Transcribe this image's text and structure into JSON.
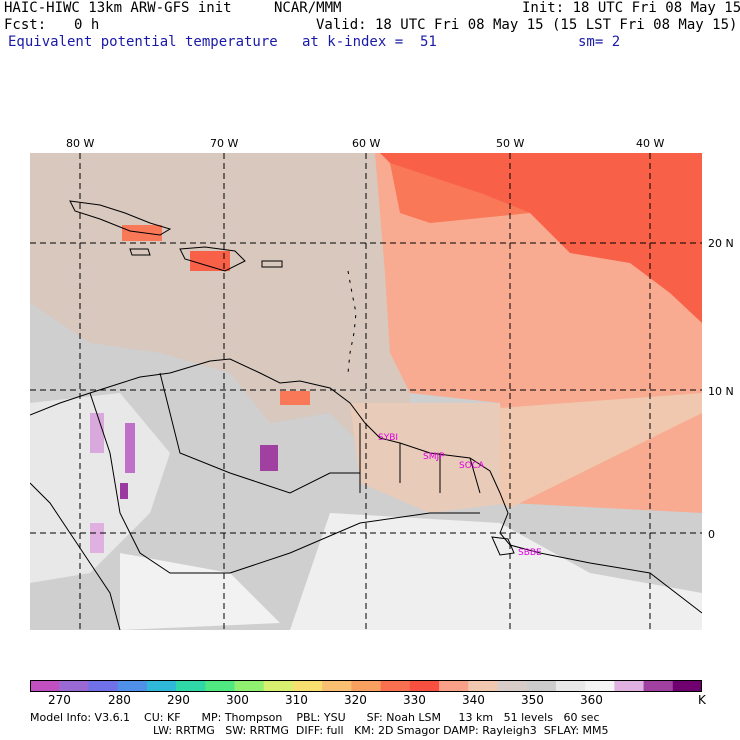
{
  "header": {
    "model_title": "HAIC-HIWC 13km ARW-GFS init",
    "org": "NCAR/MMM",
    "init": "Init: 18 UTC Fri 08 May 15",
    "fcst_label": "Fcst:",
    "fcst_value": "0 h",
    "valid": "Valid: 18 UTC Fri 08 May 15 (15 LST Fri 08 May 15)",
    "field": "Equivalent potential temperature",
    "level": "at k-index =  51",
    "smoothing": "sm= 2"
  },
  "map": {
    "lon_labels": [
      "80 W",
      "70 W",
      "60 W",
      "50 W",
      "40 W"
    ],
    "lat_labels": [
      "20 N",
      "10 N",
      "0"
    ],
    "stations": [
      "SYBI",
      "SMJP",
      "SOCA",
      "SBBE"
    ]
  },
  "colorbar": {
    "colors": [
      "#c050c0",
      "#9a6ad4",
      "#7070e8",
      "#5090e8",
      "#30b8d8",
      "#30d8a8",
      "#50e880",
      "#90f070",
      "#d8f070",
      "#f8e070",
      "#f8c070",
      "#f8a060",
      "#f87050",
      "#f85040",
      "#f8a088",
      "#f0c8b0",
      "#d8ccc8",
      "#cccccc",
      "#e8e8e8",
      "#f4f4f4",
      "#e0b0e0",
      "#a040a0",
      "#700070"
    ],
    "tick_labels": [
      "270",
      "280",
      "290",
      "300",
      "310",
      "320",
      "330",
      "340",
      "350",
      "360"
    ],
    "units": "K"
  },
  "footer": {
    "line1": "Model Info: V3.6.1    CU: KF      MP: Thompson    PBL: YSU      SF: Noah LSM     13 km   51 levels   60 sec",
    "line2": "LW: RRTMG   SW: RRTMG  DIFF: full   KM: 2D Smagor DAMP: Rayleigh3  SFLAY: MM5"
  }
}
